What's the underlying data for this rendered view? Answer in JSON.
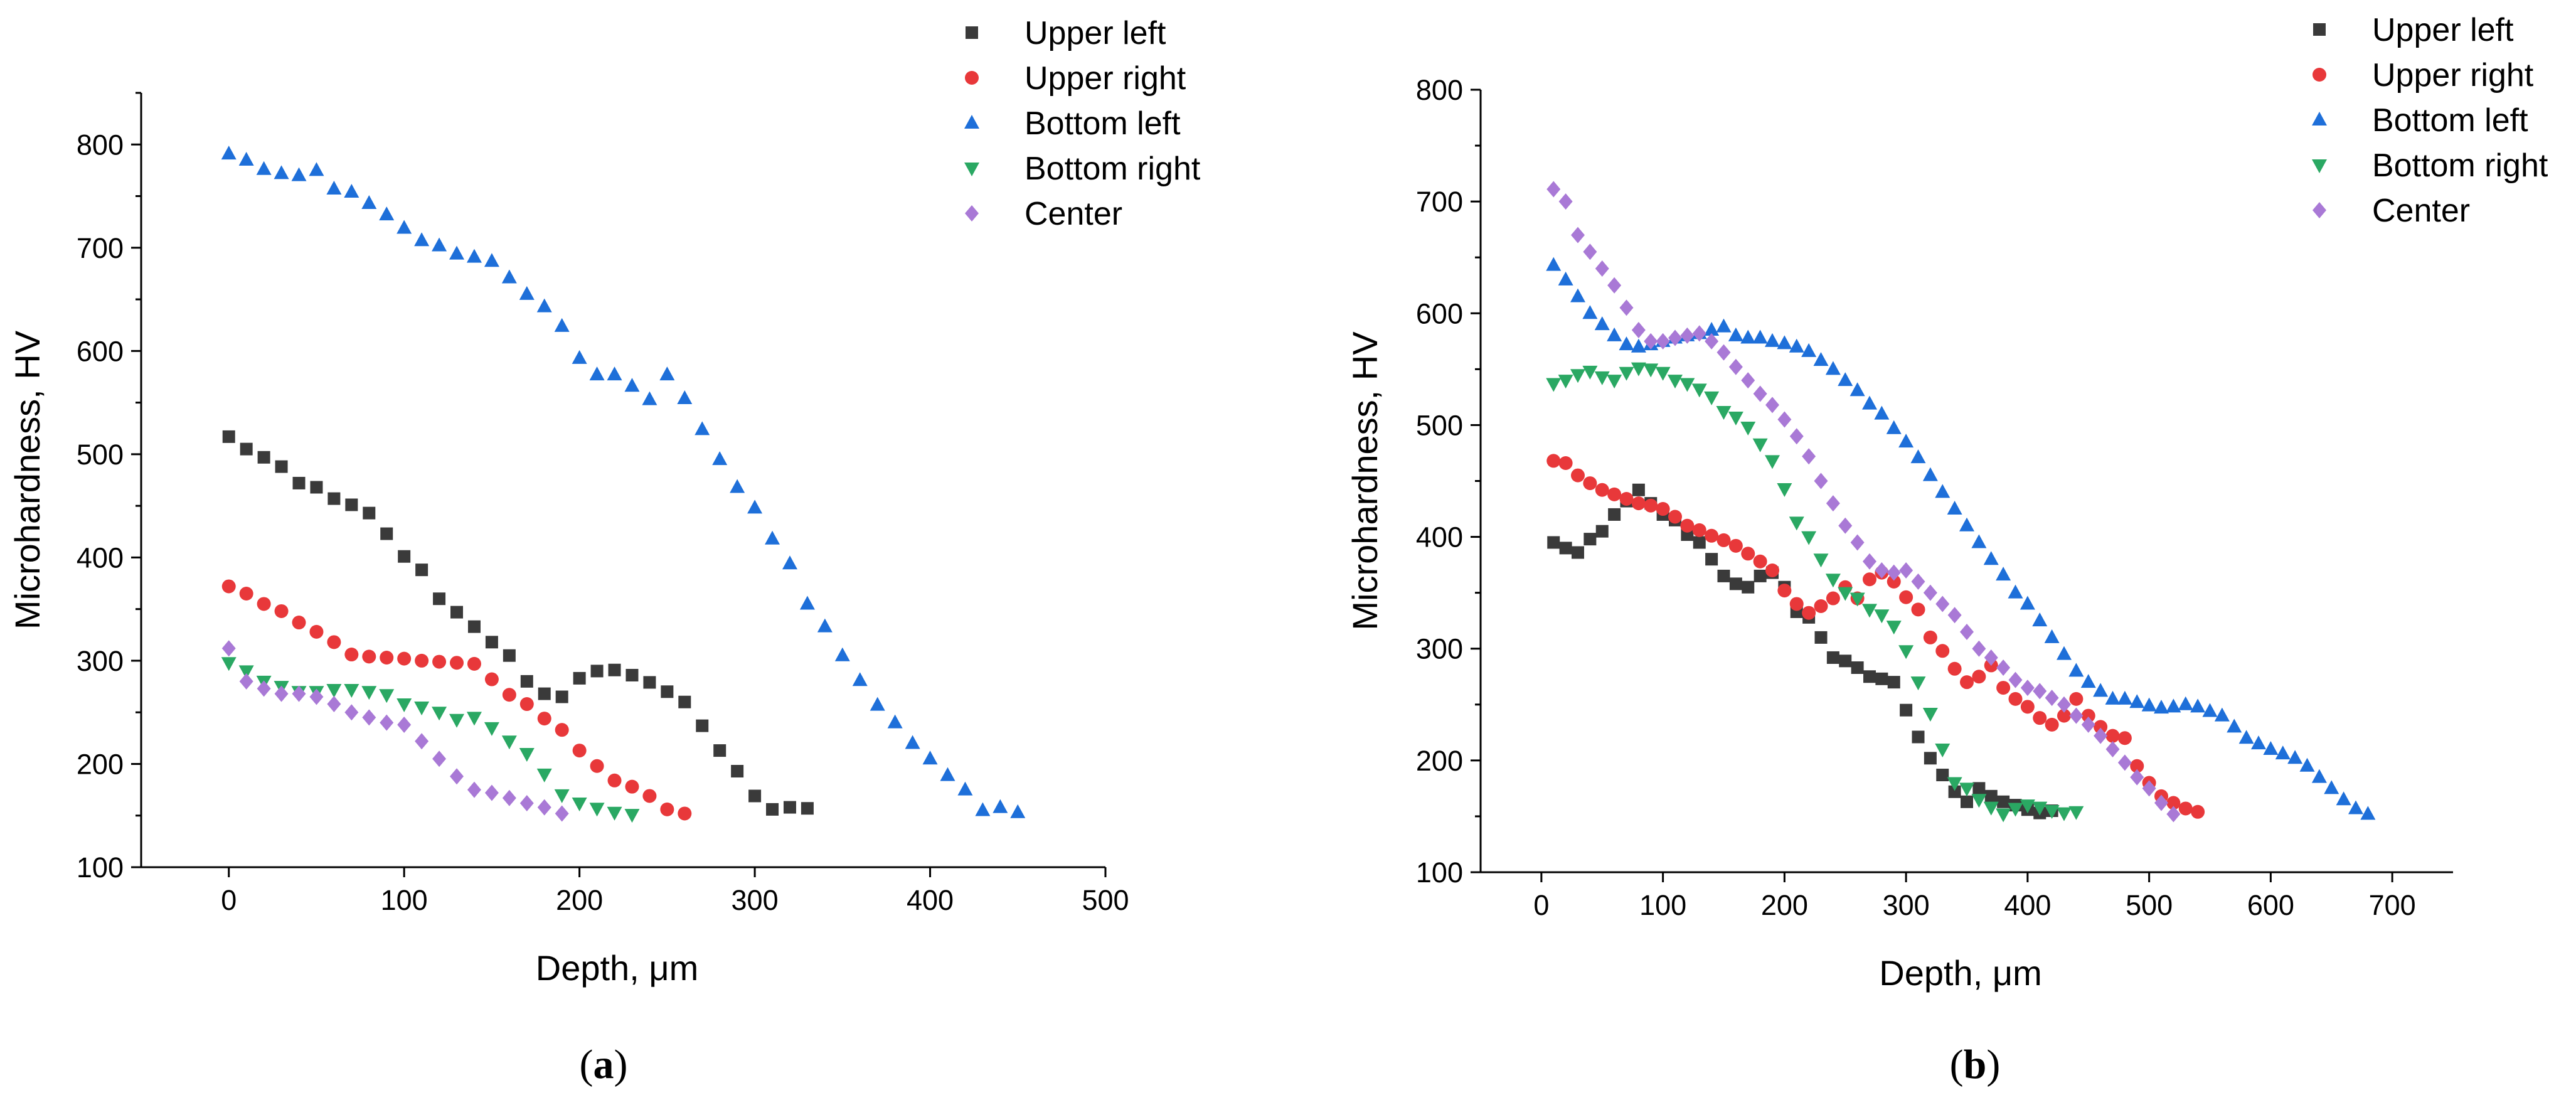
{
  "chart_data": [
    {
      "type": "scatter",
      "panel_label": "a",
      "xlabel": "Depth, μm",
      "ylabel": "Microhardness, HV",
      "xlim": [
        -50,
        500
      ],
      "ylim": [
        100,
        850
      ],
      "xticks": [
        0,
        100,
        200,
        300,
        400,
        500
      ],
      "yticks": [
        100,
        200,
        300,
        400,
        500,
        600,
        700,
        800
      ],
      "legend_position": "top-right",
      "series": [
        {
          "name": "Upper left",
          "color": "#3a3a3a",
          "marker": "square",
          "x": [
            0,
            10,
            20,
            30,
            40,
            50,
            60,
            70,
            80,
            90,
            100,
            110,
            120,
            130,
            140,
            150,
            160,
            170,
            180,
            190,
            200,
            210,
            220,
            230,
            240,
            250,
            260,
            270,
            280,
            290,
            300,
            310,
            320,
            330
          ],
          "y": [
            517,
            505,
            497,
            488,
            472,
            468,
            457,
            451,
            443,
            423,
            401,
            388,
            360,
            347,
            333,
            318,
            305,
            280,
            268,
            265,
            283,
            290,
            291,
            286,
            279,
            270,
            260,
            237,
            213,
            193,
            169,
            156,
            158,
            157
          ]
        },
        {
          "name": "Upper right",
          "color": "#e8383a",
          "marker": "circle",
          "x": [
            0,
            10,
            20,
            30,
            40,
            50,
            60,
            70,
            80,
            90,
            100,
            110,
            120,
            130,
            140,
            150,
            160,
            170,
            180,
            190,
            200,
            210,
            220,
            230,
            240,
            250,
            260
          ],
          "y": [
            372,
            365,
            355,
            348,
            337,
            328,
            318,
            306,
            304,
            303,
            302,
            300,
            299,
            298,
            297,
            282,
            267,
            258,
            244,
            233,
            213,
            198,
            184,
            178,
            169,
            156,
            152
          ]
        },
        {
          "name": "Bottom left",
          "color": "#1e6fd9",
          "marker": "triangle-up",
          "x": [
            0,
            10,
            20,
            30,
            40,
            50,
            60,
            70,
            80,
            90,
            100,
            110,
            120,
            130,
            140,
            150,
            160,
            170,
            180,
            190,
            200,
            210,
            220,
            230,
            240,
            250,
            260,
            270,
            280,
            290,
            300,
            310,
            320,
            330,
            340,
            350,
            360,
            370,
            380,
            390,
            400,
            410,
            420,
            430,
            440,
            450
          ],
          "y": [
            791,
            785,
            776,
            772,
            770,
            775,
            757,
            754,
            743,
            732,
            719,
            707,
            702,
            694,
            691,
            687,
            671,
            655,
            643,
            624,
            593,
            577,
            577,
            566,
            553,
            577,
            554,
            524,
            495,
            468,
            448,
            418,
            394,
            355,
            333,
            305,
            281,
            257,
            240,
            220,
            205,
            189,
            175,
            155,
            158,
            153
          ]
        },
        {
          "name": "Bottom right",
          "color": "#2aa863",
          "marker": "triangle-down",
          "x": [
            0,
            10,
            20,
            30,
            40,
            50,
            60,
            70,
            80,
            90,
            100,
            110,
            120,
            130,
            140,
            150,
            160,
            170,
            180,
            190,
            200,
            210,
            220,
            230
          ],
          "y": [
            298,
            290,
            280,
            275,
            270,
            270,
            272,
            272,
            270,
            267,
            258,
            255,
            250,
            243,
            245,
            235,
            222,
            210,
            190,
            170,
            162,
            157,
            153,
            151
          ]
        },
        {
          "name": "Center",
          "color": "#a979d6",
          "marker": "diamond",
          "x": [
            0,
            10,
            20,
            30,
            40,
            50,
            60,
            70,
            80,
            90,
            100,
            110,
            120,
            130,
            140,
            150,
            160,
            170,
            180,
            190
          ],
          "y": [
            312,
            280,
            273,
            268,
            268,
            265,
            258,
            250,
            245,
            240,
            238,
            222,
            205,
            188,
            175,
            172,
            167,
            162,
            158,
            152
          ]
        }
      ]
    },
    {
      "type": "scatter",
      "panel_label": "b",
      "xlabel": "Depth, μm",
      "ylabel": "Microhardness, HV",
      "xlim": [
        -50,
        750
      ],
      "ylim": [
        100,
        800
      ],
      "xticks": [
        0,
        100,
        200,
        300,
        400,
        500,
        600,
        700
      ],
      "yticks": [
        100,
        200,
        300,
        400,
        500,
        600,
        700,
        800
      ],
      "legend_position": "top-right",
      "series": [
        {
          "name": "Upper left",
          "color": "#3a3a3a",
          "marker": "square",
          "x": [
            10,
            20,
            30,
            40,
            50,
            60,
            70,
            80,
            90,
            100,
            110,
            120,
            130,
            140,
            150,
            160,
            170,
            180,
            190,
            200,
            210,
            220,
            230,
            240,
            250,
            260,
            270,
            280,
            290,
            300,
            310,
            320,
            330,
            340,
            350,
            360,
            370,
            380,
            390,
            400,
            410,
            420
          ],
          "y": [
            395,
            390,
            386,
            398,
            405,
            420,
            432,
            442,
            430,
            420,
            415,
            402,
            395,
            380,
            365,
            358,
            355,
            365,
            368,
            355,
            333,
            328,
            310,
            292,
            289,
            283,
            275,
            273,
            270,
            245,
            221,
            202,
            187,
            172,
            163,
            175,
            168,
            163,
            160,
            156,
            153,
            155
          ]
        },
        {
          "name": "Upper right",
          "color": "#e8383a",
          "marker": "circle",
          "x": [
            10,
            20,
            30,
            40,
            50,
            60,
            70,
            80,
            90,
            100,
            110,
            120,
            130,
            140,
            150,
            160,
            170,
            180,
            190,
            200,
            210,
            220,
            230,
            240,
            250,
            260,
            270,
            280,
            290,
            300,
            310,
            320,
            330,
            340,
            350,
            360,
            370,
            380,
            390,
            400,
            410,
            420,
            430,
            440,
            450,
            460,
            470,
            480,
            490,
            500,
            510,
            520,
            530,
            540
          ],
          "y": [
            468,
            466,
            455,
            448,
            442,
            438,
            434,
            430,
            428,
            425,
            418,
            410,
            406,
            401,
            397,
            392,
            385,
            378,
            370,
            352,
            340,
            332,
            338,
            345,
            355,
            345,
            362,
            368,
            360,
            346,
            335,
            310,
            298,
            282,
            270,
            275,
            285,
            265,
            255,
            248,
            238,
            232,
            240,
            255,
            240,
            230,
            222,
            220,
            195,
            180,
            168,
            162,
            157,
            154
          ]
        },
        {
          "name": "Bottom left",
          "color": "#1e6fd9",
          "marker": "triangle-up",
          "x": [
            10,
            20,
            30,
            40,
            50,
            60,
            70,
            80,
            90,
            100,
            110,
            120,
            130,
            140,
            150,
            160,
            170,
            180,
            190,
            200,
            210,
            220,
            230,
            240,
            250,
            260,
            270,
            280,
            290,
            300,
            310,
            320,
            330,
            340,
            350,
            360,
            370,
            380,
            390,
            400,
            410,
            420,
            430,
            440,
            450,
            460,
            470,
            480,
            490,
            500,
            510,
            520,
            530,
            540,
            550,
            560,
            570,
            580,
            590,
            600,
            610,
            620,
            630,
            640,
            650,
            660,
            670,
            680
          ],
          "y": [
            643,
            630,
            615,
            600,
            590,
            580,
            572,
            570,
            572,
            575,
            578,
            580,
            582,
            585,
            588,
            580,
            578,
            578,
            575,
            573,
            570,
            566,
            558,
            550,
            540,
            531,
            519,
            510,
            497,
            485,
            471,
            455,
            440,
            425,
            410,
            395,
            380,
            366,
            350,
            340,
            325,
            310,
            295,
            280,
            270,
            262,
            255,
            255,
            252,
            249,
            247,
            248,
            250,
            248,
            244,
            240,
            230,
            220,
            215,
            210,
            206,
            202,
            195,
            185,
            175,
            165,
            157,
            152
          ]
        },
        {
          "name": "Bottom right",
          "color": "#2aa863",
          "marker": "triangle-down",
          "x": [
            10,
            20,
            30,
            40,
            50,
            60,
            70,
            80,
            90,
            100,
            110,
            120,
            130,
            140,
            150,
            160,
            170,
            180,
            190,
            200,
            210,
            220,
            230,
            240,
            250,
            260,
            270,
            280,
            290,
            300,
            310,
            320,
            330,
            340,
            350,
            360,
            370,
            380,
            390,
            400,
            410,
            420,
            430,
            440
          ],
          "y": [
            537,
            540,
            545,
            548,
            543,
            540,
            547,
            551,
            550,
            547,
            540,
            537,
            532,
            525,
            512,
            507,
            498,
            483,
            468,
            443,
            413,
            400,
            380,
            362,
            350,
            345,
            335,
            330,
            320,
            298,
            270,
            242,
            210,
            180,
            175,
            165,
            158,
            152,
            157,
            160,
            158,
            155,
            153,
            154
          ]
        },
        {
          "name": "Center",
          "color": "#a979d6",
          "marker": "diamond",
          "x": [
            10,
            20,
            30,
            40,
            50,
            60,
            70,
            80,
            90,
            100,
            110,
            120,
            130,
            140,
            150,
            160,
            170,
            180,
            190,
            200,
            210,
            220,
            230,
            240,
            250,
            260,
            270,
            280,
            290,
            300,
            310,
            320,
            330,
            340,
            350,
            360,
            370,
            380,
            390,
            400,
            410,
            420,
            430,
            440,
            450,
            460,
            470,
            480,
            490,
            500,
            510,
            520
          ],
          "y": [
            711,
            700,
            670,
            655,
            640,
            625,
            605,
            585,
            575,
            575,
            578,
            580,
            582,
            575,
            565,
            552,
            540,
            528,
            518,
            505,
            490,
            472,
            450,
            430,
            410,
            395,
            378,
            370,
            368,
            370,
            360,
            350,
            340,
            330,
            315,
            300,
            292,
            283,
            272,
            265,
            262,
            256,
            250,
            240,
            232,
            222,
            210,
            198,
            185,
            175,
            162,
            152
          ]
        }
      ]
    }
  ]
}
